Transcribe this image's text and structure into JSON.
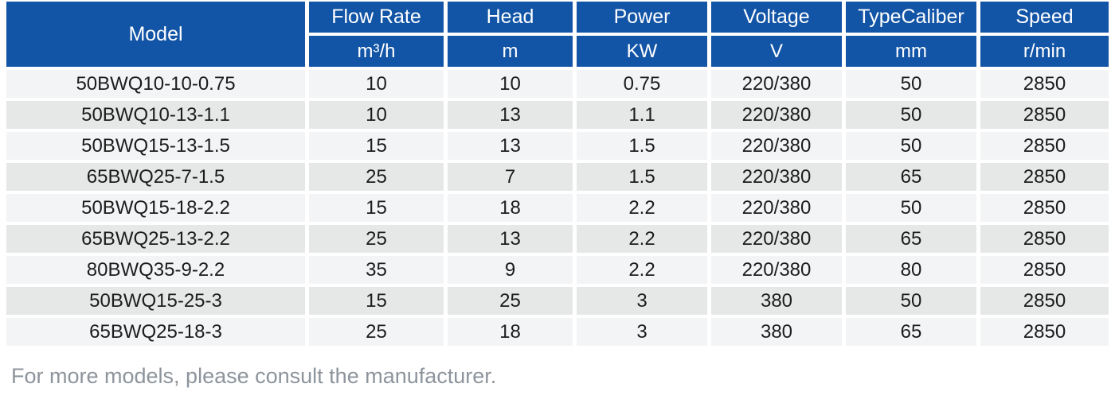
{
  "colors": {
    "header_bg": "#1254a6",
    "header_text": "#ffffff",
    "row_odd_bg": "#f3f4f6",
    "row_even_bg": "#e6e8e7",
    "cell_text": "#1c1c1c",
    "footer_text": "#8d949c",
    "page_bg": "#ffffff"
  },
  "table": {
    "columns": [
      {
        "label": "Model",
        "unit": ""
      },
      {
        "label": "Flow Rate",
        "unit": "m³/h"
      },
      {
        "label": "Head",
        "unit": "m"
      },
      {
        "label": "Power",
        "unit": "KW"
      },
      {
        "label": "Voltage",
        "unit": "V"
      },
      {
        "label": "TypeCaliber",
        "unit": "mm"
      },
      {
        "label": "Speed",
        "unit": "r/min"
      }
    ],
    "rows": [
      [
        "50BWQ10-10-0.75",
        "10",
        "10",
        "0.75",
        "220/380",
        "50",
        "2850"
      ],
      [
        "50BWQ10-13-1.1",
        "10",
        "13",
        "1.1",
        "220/380",
        "50",
        "2850"
      ],
      [
        "50BWQ15-13-1.5",
        "15",
        "13",
        "1.5",
        "220/380",
        "50",
        "2850"
      ],
      [
        "65BWQ25-7-1.5",
        "25",
        "7",
        "1.5",
        "220/380",
        "65",
        "2850"
      ],
      [
        "50BWQ15-18-2.2",
        "15",
        "18",
        "2.2",
        "220/380",
        "50",
        "2850"
      ],
      [
        "65BWQ25-13-2.2",
        "25",
        "13",
        "2.2",
        "220/380",
        "65",
        "2850"
      ],
      [
        "80BWQ35-9-2.2",
        "35",
        "9",
        "2.2",
        "220/380",
        "80",
        "2850"
      ],
      [
        "50BWQ15-25-3",
        "15",
        "25",
        "3",
        "380",
        "50",
        "2850"
      ],
      [
        "65BWQ25-18-3",
        "25",
        "18",
        "3",
        "380",
        "65",
        "2850"
      ]
    ]
  },
  "footer": {
    "note": "For more models, please consult the manufacturer."
  }
}
